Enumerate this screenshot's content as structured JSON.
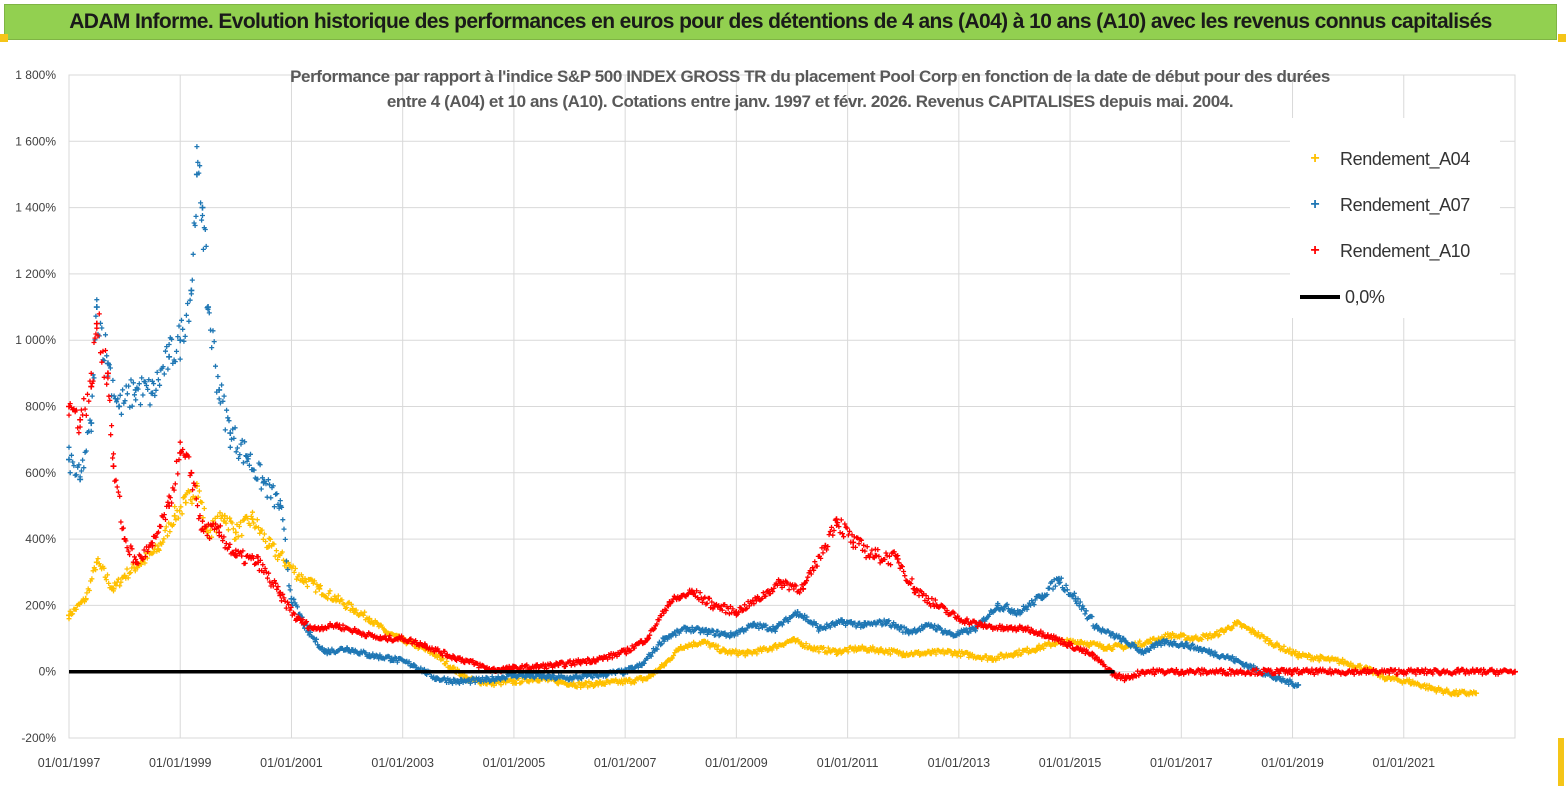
{
  "banner": {
    "text": "ADAM Informe. Evolution historique des performances en euros pour des détentions de 4 ans (A04) à 10 ans (A10) avec les revenus connus capitalisés",
    "color": "#92d050"
  },
  "chart_data": {
    "type": "scatter",
    "title_line1": "Performance par rapport à l'indice S&P 500 INDEX GROSS TR  du placement Pool Corp en fonction de la date de début pour des durées",
    "title_line2": "entre 4 (A04) et 10 ans (A10). Cotations entre janv. 1997 et févr. 2026. Revenus CAPITALISES depuis mai. 2004.",
    "xlabel": "",
    "ylabel": "",
    "x_ticks": [
      "01/01/1997",
      "01/01/1999",
      "01/01/2001",
      "01/01/2003",
      "01/01/2005",
      "01/01/2007",
      "01/01/2009",
      "01/01/2011",
      "01/01/2013",
      "01/01/2015",
      "01/01/2017",
      "01/01/2019",
      "01/01/2021"
    ],
    "xlim": [
      1997.0,
      2023.0
    ],
    "y_ticks": [
      "-200%",
      "0%",
      "200%",
      "400%",
      "600%",
      "800%",
      "1 000%",
      "1 200%",
      "1 400%",
      "1 600%",
      "1 800%"
    ],
    "ylim": [
      -200,
      1800
    ],
    "grid": true,
    "legend_position": "top-right",
    "series": [
      {
        "name": "Rendement_A04",
        "color": "#ffc000",
        "marker": "+",
        "points": [
          [
            1997.0,
            170
          ],
          [
            1997.3,
            220
          ],
          [
            1997.5,
            330
          ],
          [
            1997.8,
            250
          ],
          [
            1998.0,
            290
          ],
          [
            1998.3,
            330
          ],
          [
            1998.6,
            370
          ],
          [
            1998.9,
            470
          ],
          [
            1999.1,
            510
          ],
          [
            1999.3,
            560
          ],
          [
            1999.5,
            420
          ],
          [
            1999.8,
            470
          ],
          [
            2000.0,
            420
          ],
          [
            2000.3,
            460
          ],
          [
            2000.6,
            380
          ],
          [
            2000.9,
            330
          ],
          [
            2001.2,
            280
          ],
          [
            2001.5,
            250
          ],
          [
            2001.8,
            220
          ],
          [
            2002.1,
            190
          ],
          [
            2002.4,
            160
          ],
          [
            2002.7,
            120
          ],
          [
            2003.0,
            95
          ],
          [
            2003.3,
            75
          ],
          [
            2003.6,
            50
          ],
          [
            2003.9,
            10
          ],
          [
            2004.2,
            -25
          ],
          [
            2004.6,
            -35
          ],
          [
            2005.0,
            -30
          ],
          [
            2005.4,
            -20
          ],
          [
            2005.8,
            -30
          ],
          [
            2006.2,
            -40
          ],
          [
            2006.6,
            -35
          ],
          [
            2007.0,
            -30
          ],
          [
            2007.4,
            -20
          ],
          [
            2007.7,
            20
          ],
          [
            2008.0,
            75
          ],
          [
            2008.4,
            90
          ],
          [
            2008.8,
            60
          ],
          [
            2009.2,
            55
          ],
          [
            2009.6,
            70
          ],
          [
            2010.0,
            95
          ],
          [
            2010.4,
            70
          ],
          [
            2010.8,
            60
          ],
          [
            2011.2,
            70
          ],
          [
            2011.6,
            65
          ],
          [
            2012.0,
            55
          ],
          [
            2012.4,
            55
          ],
          [
            2012.8,
            60
          ],
          [
            2013.2,
            50
          ],
          [
            2013.6,
            40
          ],
          [
            2014.0,
            55
          ],
          [
            2014.4,
            70
          ],
          [
            2014.8,
            90
          ],
          [
            2015.2,
            90
          ],
          [
            2015.6,
            75
          ],
          [
            2016.0,
            75
          ],
          [
            2016.4,
            90
          ],
          [
            2016.8,
            110
          ],
          [
            2017.2,
            100
          ],
          [
            2017.6,
            110
          ],
          [
            2018.0,
            145
          ],
          [
            2018.3,
            120
          ],
          [
            2018.7,
            80
          ],
          [
            2019.1,
            50
          ],
          [
            2019.5,
            40
          ],
          [
            2019.9,
            30
          ],
          [
            2020.3,
            10
          ],
          [
            2020.7,
            -20
          ],
          [
            2021.1,
            -30
          ],
          [
            2021.5,
            -50
          ],
          [
            2021.9,
            -65
          ],
          [
            2022.3,
            -65
          ]
        ]
      },
      {
        "name": "Rendement_A07",
        "color": "#1f77b4",
        "marker": "+",
        "points": [
          [
            1997.0,
            640
          ],
          [
            1997.2,
            580
          ],
          [
            1997.4,
            750
          ],
          [
            1997.5,
            1100
          ],
          [
            1997.7,
            930
          ],
          [
            1997.9,
            800
          ],
          [
            1998.2,
            850
          ],
          [
            1998.5,
            840
          ],
          [
            1998.8,
            950
          ],
          [
            1999.0,
            1000
          ],
          [
            1999.2,
            1150
          ],
          [
            1999.3,
            1500
          ],
          [
            1999.4,
            1400
          ],
          [
            1999.5,
            1100
          ],
          [
            1999.7,
            850
          ],
          [
            1999.9,
            720
          ],
          [
            2000.2,
            650
          ],
          [
            2000.5,
            570
          ],
          [
            2000.8,
            500
          ],
          [
            2001.0,
            220
          ],
          [
            2001.3,
            120
          ],
          [
            2001.6,
            60
          ],
          [
            2002.0,
            70
          ],
          [
            2002.4,
            50
          ],
          [
            2002.8,
            40
          ],
          [
            2003.2,
            20
          ],
          [
            2003.6,
            -20
          ],
          [
            2004.0,
            -30
          ],
          [
            2004.5,
            -25
          ],
          [
            2005.0,
            -10
          ],
          [
            2005.5,
            -15
          ],
          [
            2006.0,
            -20
          ],
          [
            2006.5,
            -10
          ],
          [
            2007.0,
            0
          ],
          [
            2007.3,
            20
          ],
          [
            2007.7,
            100
          ],
          [
            2008.1,
            130
          ],
          [
            2008.5,
            120
          ],
          [
            2008.9,
            110
          ],
          [
            2009.3,
            140
          ],
          [
            2009.7,
            130
          ],
          [
            2010.1,
            180
          ],
          [
            2010.5,
            130
          ],
          [
            2010.9,
            150
          ],
          [
            2011.3,
            140
          ],
          [
            2011.7,
            150
          ],
          [
            2012.1,
            120
          ],
          [
            2012.5,
            140
          ],
          [
            2012.9,
            110
          ],
          [
            2013.3,
            130
          ],
          [
            2013.7,
            200
          ],
          [
            2014.1,
            180
          ],
          [
            2014.5,
            230
          ],
          [
            2014.8,
            280
          ],
          [
            2015.1,
            220
          ],
          [
            2015.5,
            130
          ],
          [
            2015.9,
            100
          ],
          [
            2016.3,
            60
          ],
          [
            2016.7,
            90
          ],
          [
            2017.1,
            80
          ],
          [
            2017.5,
            60
          ],
          [
            2017.9,
            40
          ],
          [
            2018.3,
            10
          ],
          [
            2018.7,
            -20
          ],
          [
            2019.1,
            -40
          ]
        ]
      },
      {
        "name": "Rendement_A10",
        "color": "#ff0000",
        "marker": "+",
        "points": [
          [
            1997.0,
            800
          ],
          [
            1997.2,
            760
          ],
          [
            1997.4,
            860
          ],
          [
            1997.5,
            1050
          ],
          [
            1997.7,
            900
          ],
          [
            1997.8,
            620
          ],
          [
            1998.0,
            400
          ],
          [
            1998.2,
            330
          ],
          [
            1998.5,
            380
          ],
          [
            1998.8,
            500
          ],
          [
            1999.0,
            660
          ],
          [
            1999.2,
            600
          ],
          [
            1999.4,
            430
          ],
          [
            1999.7,
            420
          ],
          [
            2000.0,
            350
          ],
          [
            2000.4,
            330
          ],
          [
            2000.8,
            230
          ],
          [
            2001.1,
            160
          ],
          [
            2001.4,
            130
          ],
          [
            2001.8,
            140
          ],
          [
            2002.2,
            120
          ],
          [
            2002.6,
            100
          ],
          [
            2003.0,
            100
          ],
          [
            2003.4,
            80
          ],
          [
            2003.8,
            50
          ],
          [
            2004.2,
            30
          ],
          [
            2004.6,
            5
          ],
          [
            2005.0,
            10
          ],
          [
            2005.4,
            15
          ],
          [
            2005.8,
            20
          ],
          [
            2006.2,
            30
          ],
          [
            2006.6,
            40
          ],
          [
            2007.0,
            60
          ],
          [
            2007.4,
            100
          ],
          [
            2007.8,
            210
          ],
          [
            2008.2,
            240
          ],
          [
            2008.6,
            200
          ],
          [
            2009.0,
            180
          ],
          [
            2009.4,
            220
          ],
          [
            2009.8,
            270
          ],
          [
            2010.2,
            250
          ],
          [
            2010.6,
            380
          ],
          [
            2010.8,
            460
          ],
          [
            2011.1,
            390
          ],
          [
            2011.5,
            350
          ],
          [
            2011.9,
            340
          ],
          [
            2012.2,
            250
          ],
          [
            2012.6,
            200
          ],
          [
            2013.0,
            160
          ],
          [
            2013.4,
            140
          ],
          [
            2013.8,
            130
          ],
          [
            2014.2,
            130
          ],
          [
            2014.6,
            110
          ],
          [
            2015.0,
            80
          ],
          [
            2015.4,
            50
          ],
          [
            2015.8,
            -10
          ],
          [
            2016.0,
            -20
          ],
          [
            2016.3,
            0
          ],
          [
            2017.0,
            0
          ],
          [
            2018.0,
            0
          ],
          [
            2019.0,
            0
          ],
          [
            2020.0,
            0
          ],
          [
            2021.0,
            0
          ],
          [
            2022.0,
            0
          ],
          [
            2023.0,
            0
          ]
        ]
      },
      {
        "name": "0,0%",
        "color": "#000000",
        "marker": "line",
        "points": [
          [
            1997.0,
            0
          ],
          [
            2015.8,
            0
          ]
        ]
      }
    ]
  }
}
